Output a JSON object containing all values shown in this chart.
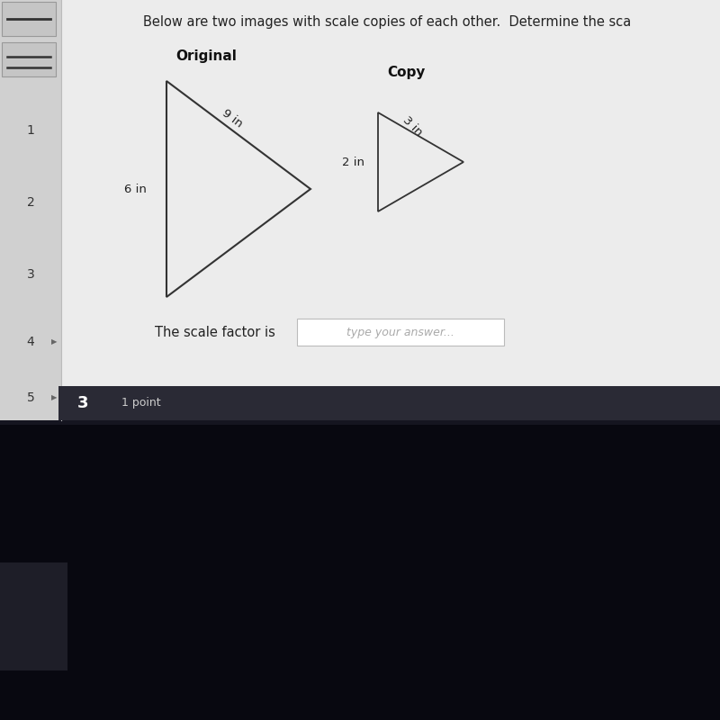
{
  "title_text": "Below are two images with scale copies of each other.  Determine the sca",
  "original_label": "Original",
  "copy_label": "Copy",
  "orig_side_label": "6 in",
  "orig_hyp_label": "9 in",
  "orig_hyp_label_rotation": -37,
  "copy_side_label": "2 in",
  "copy_hyp_label": "3 in",
  "copy_hyp_label_rotation": -45,
  "scale_factor_text": "The scale factor is",
  "input_box_text": "type your answer...",
  "sidebar_numbers": [
    "1",
    "2",
    "3",
    "4",
    "5"
  ],
  "bottom_bar_text": "3",
  "bottom_bar_subtext": "1 point",
  "bg_color": "#e0e0e0",
  "content_bg": "#ececec",
  "sidebar_bg": "#d0d0d0",
  "dark_bottom_color": "#0d0d1a",
  "dark_very_bottom": "#080810",
  "font_size_title": 10.5,
  "font_size_labels": 11,
  "font_size_dims": 9.5,
  "font_size_sidebar": 10
}
